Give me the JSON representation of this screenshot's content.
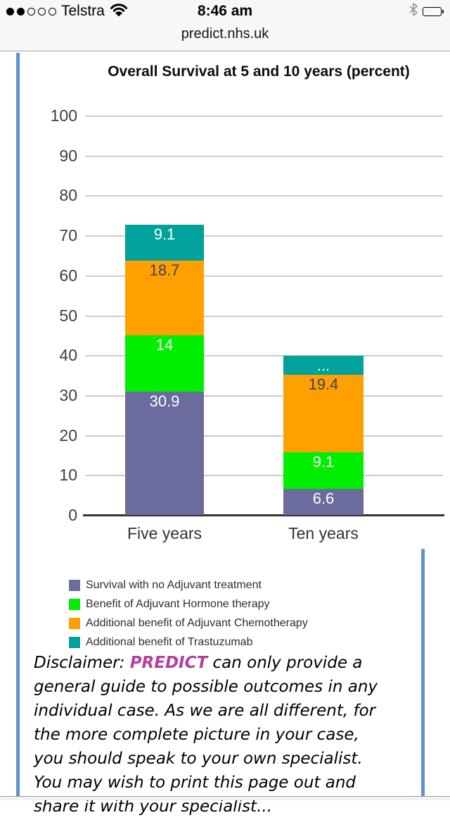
{
  "status_bar": {
    "carrier": "Telstra",
    "time": "8:46 am",
    "signal_filled": 2,
    "signal_total": 5
  },
  "url_bar": {
    "url": "predict.nhs.uk"
  },
  "chart_data": {
    "type": "bar",
    "stacked": true,
    "title": "Overall Survival at 5 and 10 years (percent)",
    "categories": [
      "Five years",
      "Ten years"
    ],
    "series": [
      {
        "name": "Survival with no Adjuvant treatment",
        "color": "#6b6b9e",
        "values": [
          30.9,
          6.6
        ],
        "labels": [
          "30.9",
          "6.6"
        ],
        "label_color": "#ffffff"
      },
      {
        "name": "Benefit of Adjuvant Hormone therapy",
        "color": "#00ee00",
        "values": [
          14,
          9.1
        ],
        "labels": [
          "14",
          "9.1"
        ],
        "label_color": "#ffffff"
      },
      {
        "name": "Additional benefit of Adjuvant Chemotherapy",
        "color": "#ff9f00",
        "values": [
          18.7,
          19.4
        ],
        "labels": [
          "18.7",
          "19.4"
        ],
        "label_color": "#41415a"
      },
      {
        "name": "Additional benefit of Trastuzumab",
        "color": "#00a29b",
        "values": [
          9.1,
          4.8
        ],
        "labels": [
          "9.1",
          "..."
        ],
        "label_color": "#ffffff"
      }
    ],
    "totals": [
      72.7,
      40.0
    ],
    "ylim": [
      0,
      100
    ],
    "ytick_step": 10,
    "grid": true,
    "legend_position": "bottom"
  },
  "disclaimer": {
    "accent_color": "#b43f9d",
    "lines": [
      {
        "segments": [
          {
            "text": "Disclaimer: "
          },
          {
            "text": "PREDICT",
            "accent": true
          },
          {
            "text": " can only provide a"
          }
        ]
      },
      {
        "segments": [
          {
            "text": "general guide to possible outcomes in any"
          }
        ]
      },
      {
        "segments": [
          {
            "text": "individual case. As we are all different, for"
          }
        ]
      },
      {
        "segments": [
          {
            "text": "the more complete picture in your case,"
          }
        ]
      },
      {
        "segments": [
          {
            "text": "you should speak to your own specialist."
          }
        ]
      },
      {
        "segments": [
          {
            "text": "You may wish to print this page out and"
          }
        ]
      },
      {
        "segments": [
          {
            "text": "share it with your specialist..."
          }
        ]
      }
    ]
  }
}
